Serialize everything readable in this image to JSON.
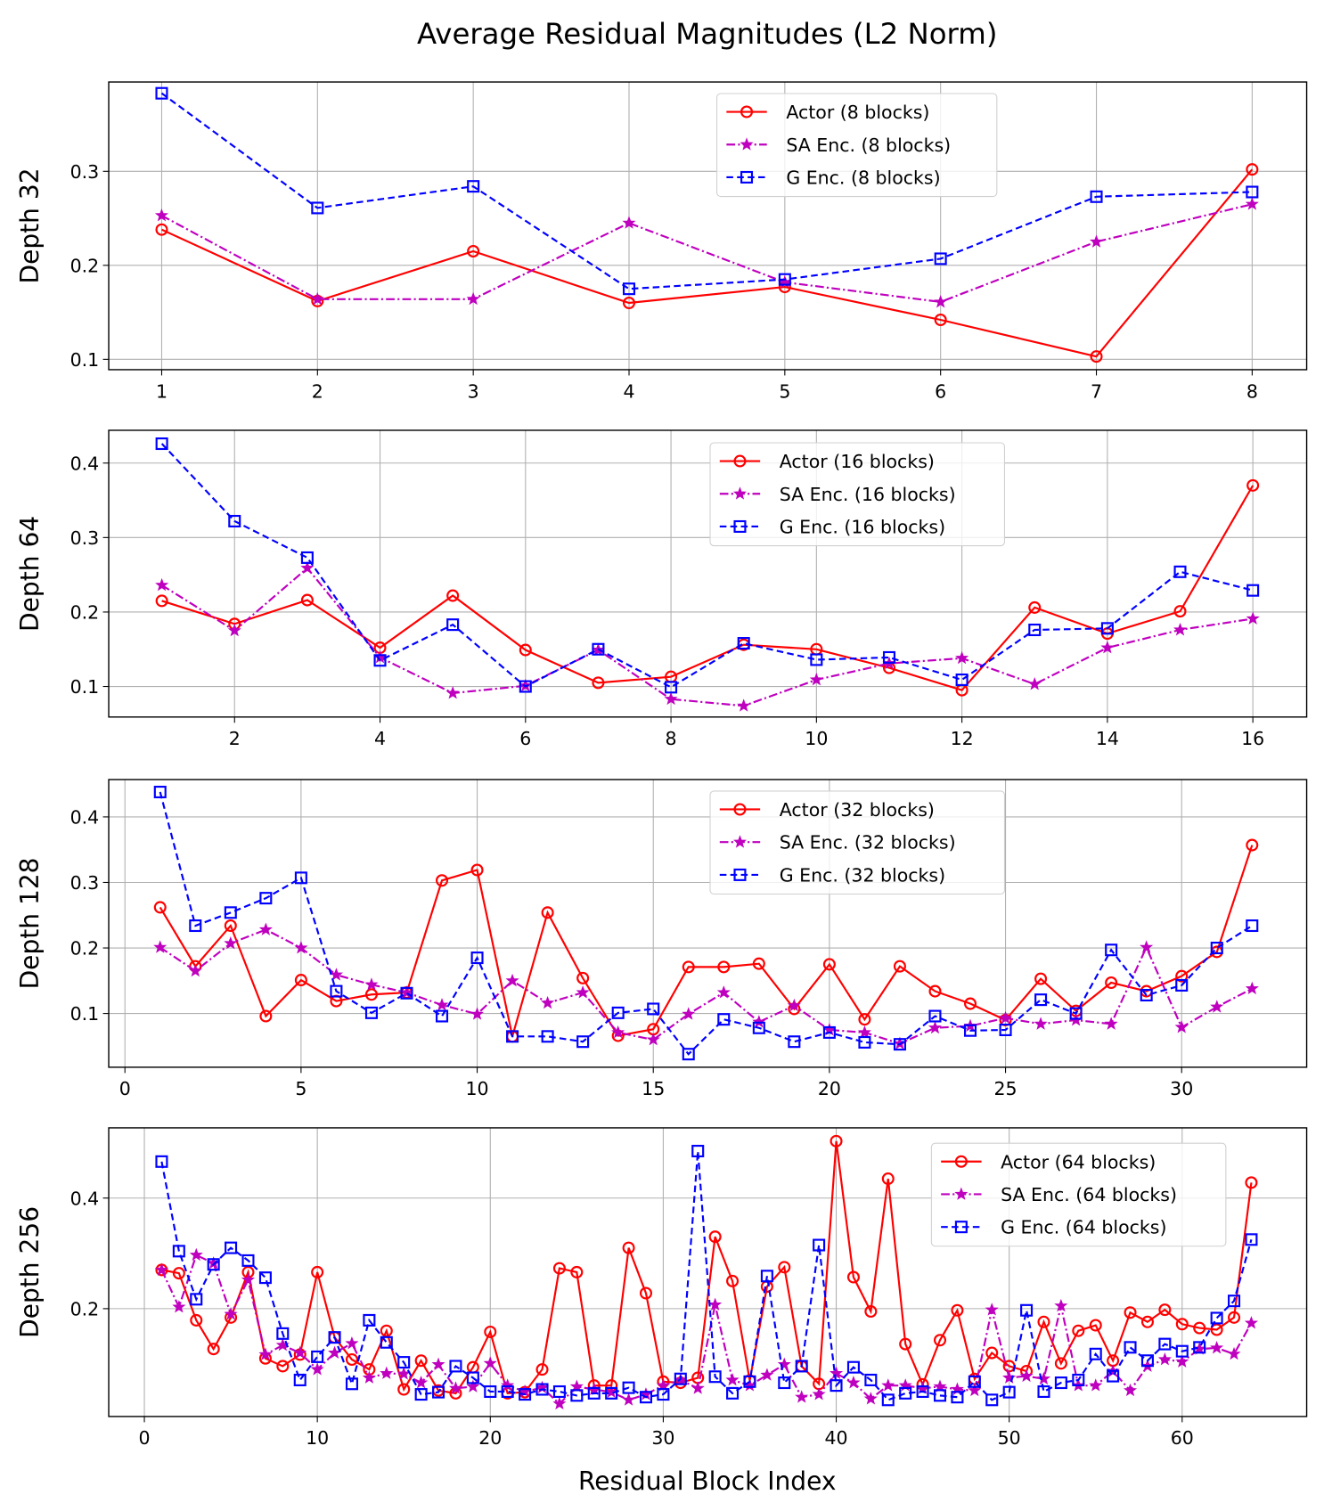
{
  "title": "Average Residual Magnitudes (L2 Norm)",
  "xlabel": "Residual Block Index",
  "chart_data": [
    {
      "type": "line",
      "ylabel": "Depth 32",
      "xlim": [
        0.66,
        8.35
      ],
      "ylim": [
        0.089,
        0.395
      ],
      "xticks": [
        1,
        2,
        3,
        4,
        5,
        6,
        7,
        8
      ],
      "yticks": [
        0.1,
        0.2,
        0.3
      ],
      "grid": true,
      "legend_placement": "upper center",
      "series": [
        {
          "name": "Actor (8 blocks)",
          "color": "#ff0000",
          "marker": "circle",
          "linestyle": "solid",
          "values": [
            0.238,
            0.162,
            0.215,
            0.16,
            0.177,
            0.142,
            0.103,
            0.302
          ]
        },
        {
          "name": "SA Enc. (8 blocks)",
          "color": "#bf00bf",
          "marker": "star",
          "linestyle": "dashdot",
          "values": [
            0.253,
            0.164,
            0.164,
            0.245,
            0.182,
            0.161,
            0.225,
            0.265
          ]
        },
        {
          "name": "G Enc. (8 blocks)",
          "color": "#0000ff",
          "marker": "square",
          "linestyle": "dashed",
          "values": [
            0.383,
            0.261,
            0.284,
            0.175,
            0.185,
            0.207,
            0.273,
            0.278
          ]
        }
      ]
    },
    {
      "type": "line",
      "ylabel": "Depth 64",
      "xlim": [
        0.27,
        16.74
      ],
      "ylim": [
        0.059,
        0.444
      ],
      "xticks": [
        2,
        4,
        6,
        8,
        10,
        12,
        14,
        16
      ],
      "yticks": [
        0.1,
        0.2,
        0.3,
        0.4
      ],
      "grid": true,
      "legend_placement": "upper center",
      "series": [
        {
          "name": "Actor (16 blocks)",
          "color": "#ff0000",
          "marker": "circle",
          "linestyle": "solid",
          "values": [
            0.215,
            0.184,
            0.216,
            0.152,
            0.222,
            0.149,
            0.105,
            0.113,
            0.156,
            0.15,
            0.125,
            0.095,
            0.206,
            0.171,
            0.201,
            0.37
          ]
        },
        {
          "name": "SA Enc. (16 blocks)",
          "color": "#bf00bf",
          "marker": "star",
          "linestyle": "dashdot",
          "values": [
            0.236,
            0.175,
            0.259,
            0.139,
            0.091,
            0.101,
            0.149,
            0.083,
            0.074,
            0.109,
            0.131,
            0.138,
            0.103,
            0.152,
            0.176,
            0.191
          ]
        },
        {
          "name": "G Enc. (16 blocks)",
          "color": "#0000ff",
          "marker": "square",
          "linestyle": "dashed",
          "values": [
            0.426,
            0.322,
            0.273,
            0.135,
            0.183,
            0.1,
            0.15,
            0.099,
            0.158,
            0.136,
            0.139,
            0.109,
            0.176,
            0.178,
            0.254,
            0.229
          ]
        }
      ]
    },
    {
      "type": "line",
      "ylabel": "Depth 128",
      "xlim": [
        -0.46,
        33.55
      ],
      "ylim": [
        0.018,
        0.457
      ],
      "xticks": [
        0,
        5,
        10,
        15,
        20,
        25,
        30
      ],
      "yticks": [
        0.1,
        0.2,
        0.3,
        0.4
      ],
      "grid": true,
      "legend_placement": "upper center",
      "series": [
        {
          "name": "Actor (32 blocks)",
          "color": "#ff0000",
          "marker": "circle",
          "linestyle": "solid",
          "values": [
            0.262,
            0.172,
            0.234,
            0.096,
            0.151,
            0.119,
            0.129,
            0.132,
            0.303,
            0.319,
            0.065,
            0.254,
            0.154,
            0.066,
            0.076,
            0.171,
            0.171,
            0.176,
            0.107,
            0.175,
            0.091,
            0.172,
            0.134,
            0.115,
            0.09,
            0.153,
            0.104,
            0.147,
            0.134,
            0.157,
            0.194,
            0.357
          ]
        },
        {
          "name": "SA Enc. (32 blocks)",
          "color": "#bf00bf",
          "marker": "star",
          "linestyle": "dashdot",
          "values": [
            0.201,
            0.165,
            0.207,
            0.228,
            0.2,
            0.159,
            0.144,
            0.132,
            0.113,
            0.099,
            0.15,
            0.116,
            0.132,
            0.071,
            0.06,
            0.099,
            0.132,
            0.087,
            0.112,
            0.075,
            0.071,
            0.054,
            0.078,
            0.081,
            0.093,
            0.084,
            0.09,
            0.084,
            0.201,
            0.079,
            0.11,
            0.138
          ]
        },
        {
          "name": "G Enc. (32 blocks)",
          "color": "#0000ff",
          "marker": "square",
          "linestyle": "dashed",
          "values": [
            0.438,
            0.234,
            0.254,
            0.276,
            0.307,
            0.134,
            0.101,
            0.131,
            0.096,
            0.185,
            0.065,
            0.065,
            0.057,
            0.101,
            0.107,
            0.038,
            0.091,
            0.078,
            0.057,
            0.071,
            0.056,
            0.053,
            0.096,
            0.074,
            0.075,
            0.121,
            0.1,
            0.197,
            0.128,
            0.143,
            0.2,
            0.234
          ]
        }
      ]
    },
    {
      "type": "line",
      "ylabel": "Depth 256",
      "xlim": [
        -2.06,
        67.2
      ],
      "ylim": [
        0.005,
        0.527
      ],
      "xticks": [
        0,
        10,
        20,
        30,
        40,
        50,
        60
      ],
      "yticks": [
        0.2,
        0.4
      ],
      "grid": true,
      "legend_placement": "upper right",
      "series": [
        {
          "name": "Actor (64 blocks)",
          "color": "#ff0000",
          "marker": "circle",
          "linestyle": "solid",
          "values": [
            0.27,
            0.264,
            0.179,
            0.127,
            0.184,
            0.266,
            0.11,
            0.096,
            0.117,
            0.266,
            0.148,
            0.108,
            0.09,
            0.16,
            0.054,
            0.106,
            0.052,
            0.047,
            0.094,
            0.158,
            0.047,
            0.049,
            0.09,
            0.273,
            0.266,
            0.061,
            0.061,
            0.31,
            0.228,
            0.068,
            0.066,
            0.075,
            0.33,
            0.25,
            0.07,
            0.24,
            0.275,
            0.096,
            0.064,
            0.503,
            0.257,
            0.195,
            0.435,
            0.136,
            0.063,
            0.143,
            0.197,
            0.073,
            0.12,
            0.096,
            0.087,
            0.176,
            0.101,
            0.16,
            0.17,
            0.106,
            0.193,
            0.176,
            0.198,
            0.172,
            0.165,
            0.162,
            0.184,
            0.428
          ]
        },
        {
          "name": "SA Enc. (64 blocks)",
          "color": "#bf00bf",
          "marker": "star",
          "linestyle": "dashdot",
          "values": [
            0.27,
            0.203,
            0.297,
            0.282,
            0.19,
            0.252,
            0.117,
            0.134,
            0.12,
            0.09,
            0.12,
            0.137,
            0.075,
            0.083,
            0.082,
            0.066,
            0.099,
            0.056,
            0.059,
            0.101,
            0.061,
            0.05,
            0.057,
            0.028,
            0.059,
            0.054,
            0.049,
            0.035,
            0.045,
            0.061,
            0.071,
            0.056,
            0.207,
            0.071,
            0.061,
            0.08,
            0.099,
            0.04,
            0.045,
            0.083,
            0.066,
            0.037,
            0.061,
            0.061,
            0.056,
            0.059,
            0.054,
            0.052,
            0.198,
            0.075,
            0.078,
            0.073,
            0.205,
            0.061,
            0.061,
            0.087,
            0.052,
            0.096,
            0.108,
            0.104,
            0.127,
            0.129,
            0.118,
            0.174
          ]
        },
        {
          "name": "G Enc. (64 blocks)",
          "color": "#0000ff",
          "marker": "square",
          "linestyle": "dashed",
          "values": [
            0.466,
            0.304,
            0.217,
            0.28,
            0.31,
            0.287,
            0.256,
            0.155,
            0.071,
            0.113,
            0.148,
            0.064,
            0.179,
            0.139,
            0.103,
            0.045,
            0.049,
            0.096,
            0.075,
            0.05,
            0.05,
            0.045,
            0.054,
            0.05,
            0.043,
            0.047,
            0.047,
            0.057,
            0.04,
            0.045,
            0.073,
            0.485,
            0.077,
            0.047,
            0.068,
            0.259,
            0.066,
            0.096,
            0.315,
            0.061,
            0.094,
            0.071,
            0.035,
            0.047,
            0.05,
            0.043,
            0.04,
            0.068,
            0.035,
            0.049,
            0.197,
            0.05,
            0.066,
            0.071,
            0.118,
            0.078,
            0.13,
            0.106,
            0.136,
            0.123,
            0.13,
            0.183,
            0.214,
            0.325
          ]
        }
      ]
    }
  ]
}
